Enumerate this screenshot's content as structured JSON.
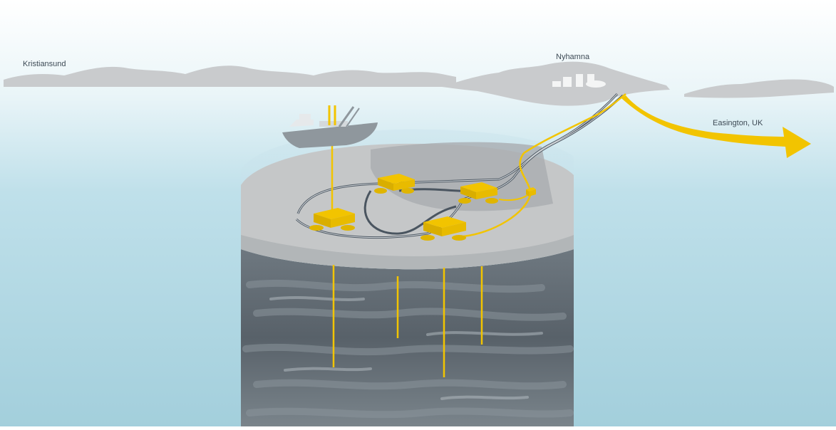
{
  "labels": {
    "left_town": "Kristiansund",
    "terminal": "Nyhamna",
    "destination": "Easington, UK"
  },
  "colors": {
    "sea": "#a9d3e0",
    "land": "#c9cbcd",
    "seabed": "#c5c7c8",
    "rock": "#5f6a73",
    "pipeline": "#4a5560",
    "equipment": "#f2c400",
    "ship": "#8f979d"
  },
  "icons": [
    "ship-icon",
    "subsea-template-icon",
    "export-arrow-icon"
  ]
}
